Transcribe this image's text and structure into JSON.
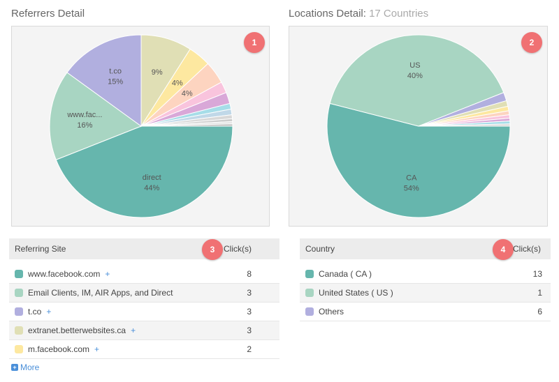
{
  "left_panel": {
    "title": "Referrers Detail",
    "badge": "1",
    "pie": {
      "slices": [
        {
          "value": 44,
          "color": "#66b6ad",
          "label": "direct",
          "pct": "44%"
        },
        {
          "value": 16,
          "color": "#a8d5c2",
          "label": "www.fac...",
          "pct": "16%"
        },
        {
          "value": 15,
          "color": "#b1afdf",
          "label": "t.co",
          "pct": "15%"
        },
        {
          "value": 9,
          "color": "#e0dfb5",
          "label": "",
          "pct": "9%"
        },
        {
          "value": 4,
          "color": "#fde8a0",
          "label": "",
          "pct": "4%"
        },
        {
          "value": 4,
          "color": "#fdd4c0",
          "label": "",
          "pct": "4%"
        },
        {
          "value": 2,
          "color": "#f9c4dd",
          "label": "",
          "pct": ""
        },
        {
          "value": 2,
          "color": "#d9a8d8",
          "label": "",
          "pct": ""
        },
        {
          "value": 1,
          "color": "#a6dde8",
          "label": "",
          "pct": ""
        },
        {
          "value": 1,
          "color": "#c0d8e8",
          "label": "",
          "pct": ""
        },
        {
          "value": 0.7,
          "color": "#d8d8d8",
          "label": "",
          "pct": ""
        },
        {
          "value": 0.5,
          "color": "#cccccc",
          "label": "",
          "pct": ""
        },
        {
          "value": 0.4,
          "color": "#e4e4e4",
          "label": "",
          "pct": ""
        },
        {
          "value": 0.4,
          "color": "#bcbcbc",
          "label": "",
          "pct": ""
        }
      ]
    }
  },
  "right_panel": {
    "title": "Locations Detail:",
    "subtitle": "17 Countries",
    "badge": "2",
    "pie": {
      "slices": [
        {
          "value": 54,
          "color": "#66b6ad",
          "label": "CA",
          "pct": "54%"
        },
        {
          "value": 40,
          "color": "#a8d5c2",
          "label": "US",
          "pct": "40%"
        },
        {
          "value": 1.5,
          "color": "#b1afdf",
          "label": "",
          "pct": ""
        },
        {
          "value": 1,
          "color": "#e0dfb5",
          "label": "",
          "pct": ""
        },
        {
          "value": 0.8,
          "color": "#fde8a0",
          "label": "",
          "pct": ""
        },
        {
          "value": 0.7,
          "color": "#fdd4c0",
          "label": "",
          "pct": ""
        },
        {
          "value": 0.6,
          "color": "#f9c4dd",
          "label": "",
          "pct": ""
        },
        {
          "value": 0.5,
          "color": "#d9a8d8",
          "label": "",
          "pct": ""
        },
        {
          "value": 0.5,
          "color": "#a6dde8",
          "label": "",
          "pct": ""
        },
        {
          "value": 0.4,
          "color": "#d8d8d8",
          "label": "",
          "pct": ""
        }
      ]
    }
  },
  "referrers_table": {
    "badge": "3",
    "header_site": "Referring Site",
    "header_clicks": "Click(s)",
    "rows": [
      {
        "name": "www.facebook.com",
        "clicks": "8",
        "color": "#66b6ad",
        "plus": "+"
      },
      {
        "name": "Email Clients, IM, AIR Apps, and Direct",
        "clicks": "3",
        "color": "#a8d5c2",
        "plus": ""
      },
      {
        "name": "t.co",
        "clicks": "3",
        "color": "#b1afdf",
        "plus": "+"
      },
      {
        "name": "extranet.betterwebsites.ca",
        "clicks": "3",
        "color": "#e0dfb5",
        "plus": "+"
      },
      {
        "name": "m.facebook.com",
        "clicks": "2",
        "color": "#fde8a0",
        "plus": "+"
      }
    ],
    "more_label": "More"
  },
  "locations_table": {
    "badge": "4",
    "header_country": "Country",
    "header_clicks": "Click(s)",
    "rows": [
      {
        "name": "Canada ( CA )",
        "clicks": "13",
        "color": "#66b6ad"
      },
      {
        "name": "United States ( US )",
        "clicks": "1",
        "color": "#a8d5c2"
      },
      {
        "name": "Others",
        "clicks": "6",
        "color": "#b1afdf"
      }
    ]
  }
}
